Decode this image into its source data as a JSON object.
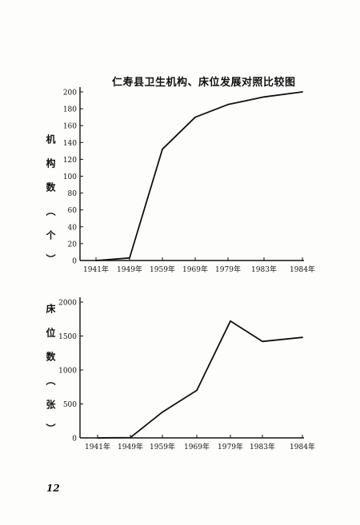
{
  "page": {
    "title": "仁寿县卫生机构、床位发展对照比较图",
    "page_number": "12"
  },
  "chart_data": [
    {
      "type": "line",
      "ylabel": "机构数（个）",
      "categories": [
        "1941年",
        "1949年",
        "1959年",
        "1969年",
        "1979年",
        "1983年",
        "1984年"
      ],
      "y_ticks": [
        "0",
        "20",
        "40",
        "60",
        "80",
        "100",
        "120",
        "140",
        "160",
        "180",
        "200"
      ],
      "ylim": [
        0,
        200
      ],
      "series": [
        {
          "values": [
            0,
            3,
            132,
            170,
            185,
            194,
            200
          ]
        }
      ]
    },
    {
      "type": "line",
      "ylabel": "床位数（张）",
      "categories": [
        "1941年",
        "1949年",
        "1959年",
        "1969年",
        "1979年",
        "1983年",
        "1984年"
      ],
      "y_ticks": [
        "0",
        "500",
        "1000",
        "1500",
        "2000"
      ],
      "ylim": [
        0,
        2000
      ],
      "series": [
        {
          "values": [
            0,
            5,
            380,
            700,
            1720,
            1420,
            1480
          ]
        }
      ]
    }
  ]
}
